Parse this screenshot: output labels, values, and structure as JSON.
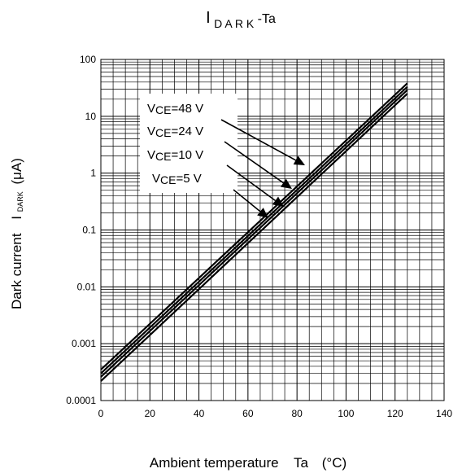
{
  "chart_data": {
    "type": "line",
    "title": {
      "main": "I",
      "sub": "D A R K",
      "suffix": "-Ta"
    },
    "xlabel": {
      "main": "Ambient temperature",
      "symbol": "Ta",
      "unit": "(°C)"
    },
    "ylabel": {
      "main": "Dark current",
      "symbol": "I",
      "symbol_sub": "DARK",
      "unit": "(μA)"
    },
    "xlim": [
      0,
      140
    ],
    "ylim": [
      0.0001,
      100
    ],
    "yscale": "log",
    "grid": true,
    "x_ticks": [
      "0",
      "20",
      "40",
      "60",
      "80",
      "100",
      "120",
      "140"
    ],
    "y_ticks": [
      "0.0001",
      "0.001",
      "0.01",
      "0.1",
      "1",
      "10",
      "100"
    ],
    "series": [
      {
        "name": "VCE=48 V",
        "x": [
          0,
          125
        ],
        "y": [
          0.00035,
          38
        ]
      },
      {
        "name": "VCE=24 V",
        "x": [
          0,
          125
        ],
        "y": [
          0.0003,
          33
        ]
      },
      {
        "name": "VCE=10 V",
        "x": [
          0,
          125
        ],
        "y": [
          0.00026,
          29
        ]
      },
      {
        "name": "VCE=5 V",
        "x": [
          0,
          125
        ],
        "y": [
          0.00022,
          25
        ]
      }
    ],
    "annotations": [
      {
        "prefix": "V",
        "sub": "CE",
        "text": "=48 V"
      },
      {
        "prefix": "V",
        "sub": "CE",
        "text": "=24 V"
      },
      {
        "prefix": "V",
        "sub": "CE",
        "text": "=10 V"
      },
      {
        "prefix": "V",
        "sub": "CE",
        "text": "=5 V"
      }
    ]
  }
}
